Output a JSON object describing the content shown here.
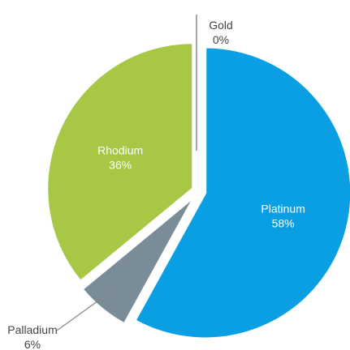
{
  "chart_data": {
    "type": "pie",
    "title": "",
    "exploded": true,
    "slices": [
      {
        "name": "Gold",
        "value": 0,
        "label": "0%",
        "color": "#c8c8c8",
        "label_placement": "outside-top"
      },
      {
        "name": "Platinum",
        "value": 58,
        "label": "58%",
        "color": "#0a9fe3",
        "label_placement": "inside"
      },
      {
        "name": "Palladium",
        "value": 6,
        "label": "6%",
        "color": "#7a8c97",
        "label_placement": "outside-left"
      },
      {
        "name": "Rhodium",
        "value": 36,
        "label": "36%",
        "color": "#a7c745",
        "label_placement": "inside"
      }
    ],
    "colors": {
      "inside_label": "#ffffff",
      "outside_label": "#444444",
      "leader_line": "#888888"
    }
  }
}
